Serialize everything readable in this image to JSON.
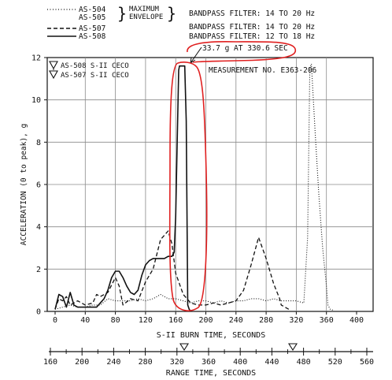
{
  "chart_data": {
    "type": "line",
    "title": "",
    "xlabel": "S-II BURN TIME, SECONDS",
    "ylabel": "ACCELERATION (0 to peak), g",
    "xlim": [
      0,
      400
    ],
    "ylim": [
      0,
      12
    ],
    "x_ticks": [
      0,
      40,
      80,
      120,
      160,
      200,
      240,
      280,
      320,
      360,
      400
    ],
    "y_ticks": [
      0,
      2,
      4,
      6,
      8,
      10,
      12
    ],
    "grid": true,
    "legend_position": "top-left",
    "legend": {
      "brace_note": "MAXIMUM\nENVELOPE",
      "entries": [
        {
          "label": "AS-504",
          "style": "dotted",
          "filter": "BANDPASS FILTER:  14 TO 20 Hz"
        },
        {
          "label": "AS-505",
          "style": "dotted",
          "filter": ""
        },
        {
          "label": "AS-507",
          "style": "dashed",
          "filter": "BANDPASS FILTER:  14 TO 20 Hz"
        },
        {
          "label": "AS-508",
          "style": "solid",
          "filter": "BANDPASS FILTER:  12 TO 18 Hz"
        }
      ]
    },
    "event_markers": [
      {
        "label": "AS-508 S-II CECO",
        "x": 165
      },
      {
        "label": "AS-507 S-II CECO",
        "x": 299
      }
    ],
    "annotations": {
      "peak_callout": "33.7 g AT 330.6 SEC",
      "measurement": "MEASUREMENT NO. E363-206"
    },
    "secondary_axis": {
      "label": "RANGE TIME, SECONDS",
      "ticks": [
        160,
        200,
        240,
        280,
        320,
        360,
        400,
        440,
        480,
        520,
        560
      ]
    },
    "series": [
      {
        "name": "AS-504/AS-505",
        "style": "dotted",
        "x": [
          0,
          10,
          20,
          30,
          40,
          50,
          60,
          70,
          80,
          90,
          100,
          110,
          120,
          130,
          140,
          150,
          160,
          170,
          180,
          190,
          200,
          210,
          220,
          230,
          240,
          250,
          260,
          270,
          280,
          290,
          300,
          310,
          320,
          330,
          335,
          338,
          340,
          345,
          350,
          355,
          360,
          362,
          365,
          370
        ],
        "y": [
          0.1,
          0.2,
          0.3,
          0.2,
          0.2,
          0.3,
          0.3,
          0.6,
          0.5,
          0.5,
          0.5,
          0.6,
          0.5,
          0.6,
          0.8,
          0.6,
          0.6,
          0.5,
          0.4,
          0.5,
          0.5,
          0.4,
          0.5,
          0.4,
          0.5,
          0.5,
          0.6,
          0.6,
          0.5,
          0.6,
          0.5,
          0.5,
          0.5,
          0.4,
          3.5,
          11.5,
          11.7,
          8.5,
          5.5,
          3.0,
          1.2,
          0.3,
          0.1,
          0.05
        ]
      },
      {
        "name": "AS-507",
        "style": "dashed",
        "x": [
          0,
          5,
          10,
          15,
          20,
          25,
          30,
          40,
          50,
          55,
          60,
          70,
          80,
          85,
          90,
          100,
          110,
          120,
          130,
          140,
          150,
          155,
          160,
          170,
          180,
          190,
          200,
          210,
          220,
          230,
          240,
          250,
          260,
          270,
          280,
          290,
          298,
          300,
          305,
          310
        ],
        "y": [
          0.1,
          0.6,
          0.5,
          0.7,
          0.3,
          0.4,
          0.5,
          0.3,
          0.4,
          0.8,
          0.7,
          0.9,
          1.6,
          1.2,
          0.3,
          0.6,
          0.5,
          1.4,
          2.0,
          3.4,
          3.8,
          3.2,
          1.8,
          0.8,
          0.4,
          0.3,
          0.3,
          0.4,
          0.3,
          0.4,
          0.5,
          1.0,
          2.2,
          3.5,
          2.5,
          1.3,
          0.6,
          0.3,
          0.2,
          0.1
        ]
      },
      {
        "name": "AS-508",
        "style": "solid",
        "x": [
          0,
          5,
          10,
          15,
          20,
          25,
          30,
          35,
          40,
          45,
          50,
          55,
          60,
          65,
          70,
          75,
          80,
          85,
          90,
          95,
          100,
          105,
          110,
          115,
          120,
          125,
          130,
          135,
          140,
          145,
          150,
          155,
          158,
          160,
          162,
          164,
          165,
          166,
          168,
          170,
          172,
          174,
          176,
          178,
          180
        ],
        "y": [
          0.1,
          0.8,
          0.7,
          0.2,
          0.9,
          0.3,
          0.2,
          0.2,
          0.2,
          0.2,
          0.2,
          0.2,
          0.4,
          0.6,
          1.0,
          1.6,
          1.9,
          1.9,
          1.6,
          1.2,
          0.9,
          0.8,
          1.0,
          1.7,
          2.2,
          2.4,
          2.5,
          2.5,
          2.5,
          2.5,
          2.6,
          2.6,
          2.8,
          4.5,
          8.0,
          11.4,
          11.6,
          11.6,
          11.6,
          11.6,
          11.6,
          9.0,
          0.3,
          0.1,
          0.0
        ]
      }
    ]
  },
  "colors": {
    "ink": "#111111",
    "highlight": "#e02020",
    "grid": "#8a8a8a"
  }
}
